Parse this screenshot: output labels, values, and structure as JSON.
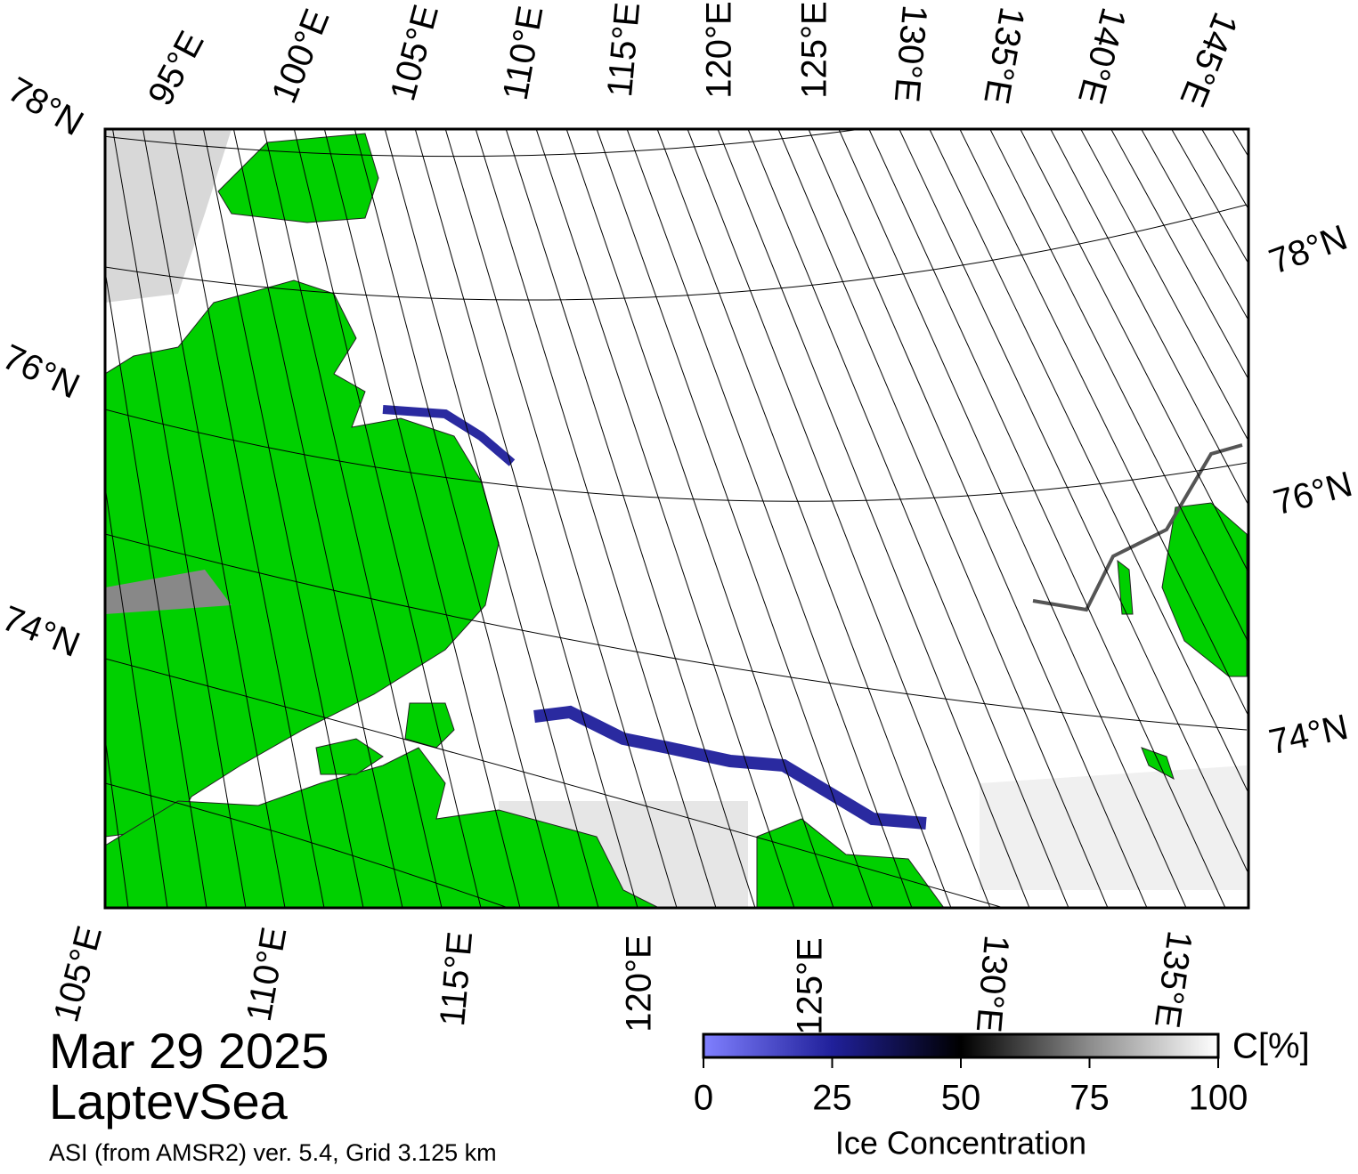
{
  "map": {
    "top_labels": [
      "95°E",
      "100°E",
      "105°E",
      "110°E",
      "115°E",
      "120°E",
      "125°E",
      "130°E",
      "135°E",
      "140°E",
      "145°E"
    ],
    "bottom_labels": [
      "105°E",
      "110°E",
      "115°E",
      "120°E",
      "125°E",
      "130°E",
      "135°E"
    ],
    "left_labels": [
      "78°N",
      "76°N",
      "74°N"
    ],
    "right_labels": [
      "78°N",
      "76°N",
      "74°N"
    ]
  },
  "date": "Mar 29 2025",
  "region": "LaptevSea",
  "source": "ASI (from AMSR2) ver. 5.4,  Grid 3.125 km",
  "colorbar": {
    "range": [
      0,
      100
    ],
    "ticks": [
      0,
      25,
      50,
      75,
      100
    ],
    "unit": "C[%]",
    "label": "Ice Concentration"
  }
}
